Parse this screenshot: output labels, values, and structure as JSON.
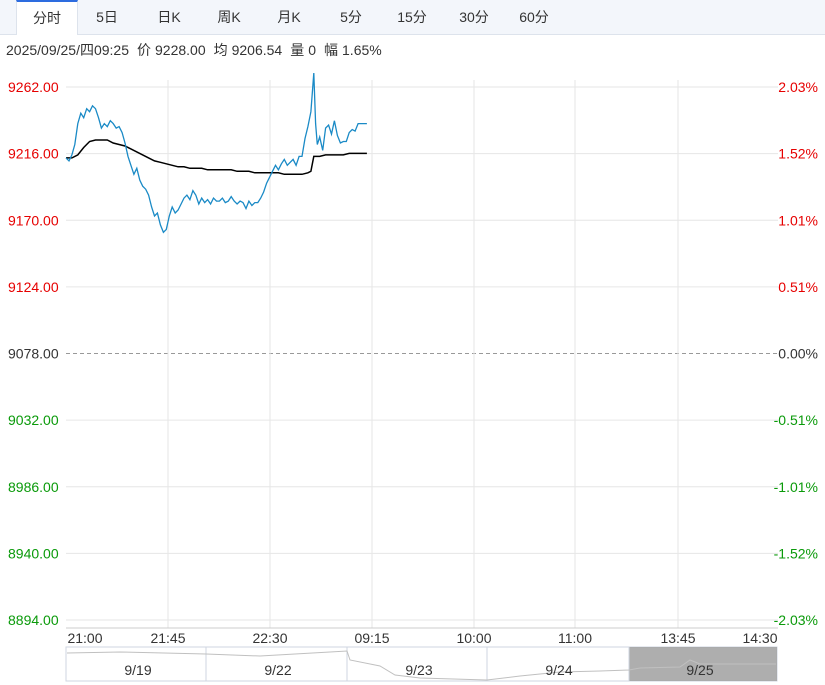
{
  "tabs": [
    {
      "label": "分时",
      "active": true
    },
    {
      "label": "5日"
    },
    {
      "label": "日K"
    },
    {
      "label": "周K"
    },
    {
      "label": "月K"
    },
    {
      "label": "5分"
    },
    {
      "label": "15分"
    },
    {
      "label": "30分"
    },
    {
      "label": "60分"
    }
  ],
  "info": {
    "datetime": "2025/09/25/四09:25",
    "price_label": "价",
    "price": "9228.00",
    "avg_label": "均",
    "avg": "9206.54",
    "vol_label": "量",
    "vol": "0",
    "range_label": "幅",
    "range": "1.65%"
  },
  "colors": {
    "up": "#e60000",
    "down": "#0a9a0a",
    "price_line": "#1a8ac6",
    "avg_line": "#000000",
    "grid": "#e6e6e6"
  },
  "chart_data": {
    "type": "line",
    "y_ticks": [
      "9262.00",
      "9216.00",
      "9170.00",
      "9124.00",
      "9078.00",
      "9032.00",
      "8986.00",
      "8940.00",
      "8894.00"
    ],
    "pct_ticks": [
      "2.03%",
      "1.52%",
      "1.01%",
      "0.51%",
      "0.00%",
      "-0.51%",
      "-1.01%",
      "-1.52%",
      "-2.03%"
    ],
    "ylim": [
      8894,
      9262
    ],
    "base_price": 9078,
    "x_ticks": [
      "21:00",
      "21:45",
      "22:30",
      "09:15",
      "10:00",
      "11:00",
      "13:45",
      "14:30"
    ],
    "price_series": [
      [
        0,
        9205
      ],
      [
        0.5,
        9203
      ],
      [
        1,
        9207
      ],
      [
        1.5,
        9214
      ],
      [
        2,
        9228
      ],
      [
        2.5,
        9235
      ],
      [
        3,
        9232
      ],
      [
        3.5,
        9238
      ],
      [
        4,
        9236
      ],
      [
        4.5,
        9240
      ],
      [
        5,
        9238
      ],
      [
        5.5,
        9232
      ],
      [
        6,
        9225
      ],
      [
        6.5,
        9228
      ],
      [
        7,
        9226
      ],
      [
        7.5,
        9230
      ],
      [
        8,
        9228
      ],
      [
        8.5,
        9225
      ],
      [
        9,
        9226
      ],
      [
        9.5,
        9222
      ],
      [
        10,
        9215
      ],
      [
        10.5,
        9206
      ],
      [
        11,
        9200
      ],
      [
        11.5,
        9194
      ],
      [
        12,
        9198
      ],
      [
        12.5,
        9190
      ],
      [
        13,
        9186
      ],
      [
        13.5,
        9184
      ],
      [
        14,
        9180
      ],
      [
        14.5,
        9172
      ],
      [
        15,
        9166
      ],
      [
        15.5,
        9168
      ],
      [
        16,
        9160
      ],
      [
        16.5,
        9155
      ],
      [
        17,
        9157
      ],
      [
        17.5,
        9166
      ],
      [
        18,
        9172
      ],
      [
        18.5,
        9168
      ],
      [
        19,
        9170
      ],
      [
        19.5,
        9174
      ],
      [
        20,
        9178
      ],
      [
        20.5,
        9180
      ],
      [
        21,
        9177
      ],
      [
        21.5,
        9183
      ],
      [
        22,
        9180
      ],
      [
        22.5,
        9174
      ],
      [
        23,
        9178
      ],
      [
        23.5,
        9175
      ],
      [
        24,
        9177
      ],
      [
        24.5,
        9174
      ],
      [
        25,
        9178
      ],
      [
        25.5,
        9176
      ],
      [
        26,
        9176
      ],
      [
        26.5,
        9178
      ],
      [
        27,
        9175
      ],
      [
        27.5,
        9176
      ],
      [
        28,
        9179
      ],
      [
        28.5,
        9176
      ],
      [
        29,
        9174
      ],
      [
        29.5,
        9176
      ],
      [
        30,
        9175
      ],
      [
        30.5,
        9171
      ],
      [
        31,
        9176
      ],
      [
        31.5,
        9173
      ],
      [
        32,
        9175
      ],
      [
        32.5,
        9175
      ],
      [
        33,
        9178
      ],
      [
        33.5,
        9182
      ],
      [
        34,
        9188
      ],
      [
        34.5,
        9192
      ],
      [
        35,
        9196
      ],
      [
        35.5,
        9200
      ],
      [
        36,
        9197
      ],
      [
        36.5,
        9201
      ],
      [
        37,
        9204
      ],
      [
        37.5,
        9200
      ],
      [
        38,
        9202
      ],
      [
        38.5,
        9204
      ],
      [
        39,
        9200
      ],
      [
        39.5,
        9206
      ],
      [
        40,
        9206
      ],
      [
        40.5,
        9218
      ],
      [
        41,
        9226
      ],
      [
        41.5,
        9236
      ],
      [
        42,
        9262
      ],
      [
        42.3,
        9228
      ],
      [
        42.6,
        9214
      ],
      [
        43,
        9219
      ],
      [
        43.5,
        9210
      ],
      [
        44,
        9225
      ],
      [
        44.5,
        9227
      ],
      [
        45,
        9221
      ],
      [
        45.5,
        9230
      ],
      [
        46,
        9220
      ],
      [
        46.5,
        9215
      ],
      [
        47,
        9216
      ],
      [
        47.5,
        9216
      ],
      [
        48,
        9222
      ],
      [
        48.5,
        9224
      ],
      [
        49,
        9223
      ],
      [
        49.5,
        9228
      ],
      [
        50,
        9228
      ],
      [
        50.5,
        9228
      ],
      [
        51,
        9228
      ]
    ],
    "avg_series": [
      [
        0,
        9205
      ],
      [
        1,
        9205
      ],
      [
        2,
        9207
      ],
      [
        3,
        9212
      ],
      [
        4,
        9216
      ],
      [
        5,
        9217
      ],
      [
        6,
        9217
      ],
      [
        7,
        9217
      ],
      [
        8,
        9215
      ],
      [
        9,
        9214
      ],
      [
        10,
        9213
      ],
      [
        11,
        9211
      ],
      [
        12,
        9209
      ],
      [
        13,
        9207
      ],
      [
        14,
        9205
      ],
      [
        15,
        9203
      ],
      [
        16,
        9202
      ],
      [
        17,
        9201
      ],
      [
        18,
        9200
      ],
      [
        19,
        9199
      ],
      [
        20,
        9199
      ],
      [
        21,
        9198
      ],
      [
        22,
        9198
      ],
      [
        23,
        9198
      ],
      [
        24,
        9197
      ],
      [
        25,
        9197
      ],
      [
        26,
        9197
      ],
      [
        27,
        9197
      ],
      [
        28,
        9197
      ],
      [
        29,
        9196
      ],
      [
        30,
        9196
      ],
      [
        31,
        9196
      ],
      [
        32,
        9195
      ],
      [
        33,
        9195
      ],
      [
        34,
        9195
      ],
      [
        35,
        9195
      ],
      [
        36,
        9195
      ],
      [
        37,
        9194
      ],
      [
        38,
        9194
      ],
      [
        39,
        9194
      ],
      [
        40,
        9194
      ],
      [
        41,
        9195
      ],
      [
        41.5,
        9196
      ],
      [
        42,
        9206
      ],
      [
        43,
        9206
      ],
      [
        44,
        9207
      ],
      [
        45,
        9207
      ],
      [
        46,
        9207
      ],
      [
        47,
        9207
      ],
      [
        48,
        9208
      ],
      [
        49,
        9208
      ],
      [
        50,
        9208
      ],
      [
        51,
        9208
      ]
    ],
    "navigator_labels": [
      "9/19",
      "9/22",
      "9/23",
      "9/24",
      "9/25"
    ]
  }
}
